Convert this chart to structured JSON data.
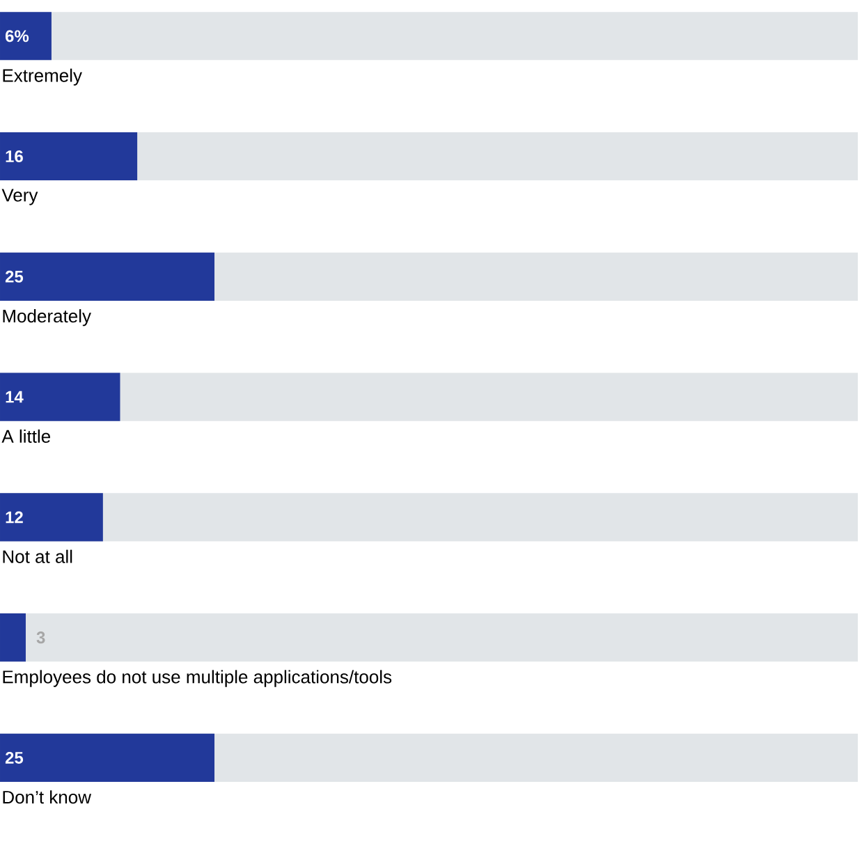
{
  "chart_data": {
    "type": "bar",
    "orientation": "horizontal",
    "categories": [
      "Extremely",
      "Very",
      "Moderately",
      "A little",
      "Not at all",
      "Employees do not use multiple applications/tools",
      "Don’t know"
    ],
    "values": [
      6,
      16,
      25,
      14,
      12,
      3,
      25
    ],
    "value_labels": [
      "6%",
      "16",
      "25",
      "14",
      "12",
      "3",
      "25"
    ],
    "color": "#22399a",
    "xlim": [
      0,
      100
    ]
  }
}
